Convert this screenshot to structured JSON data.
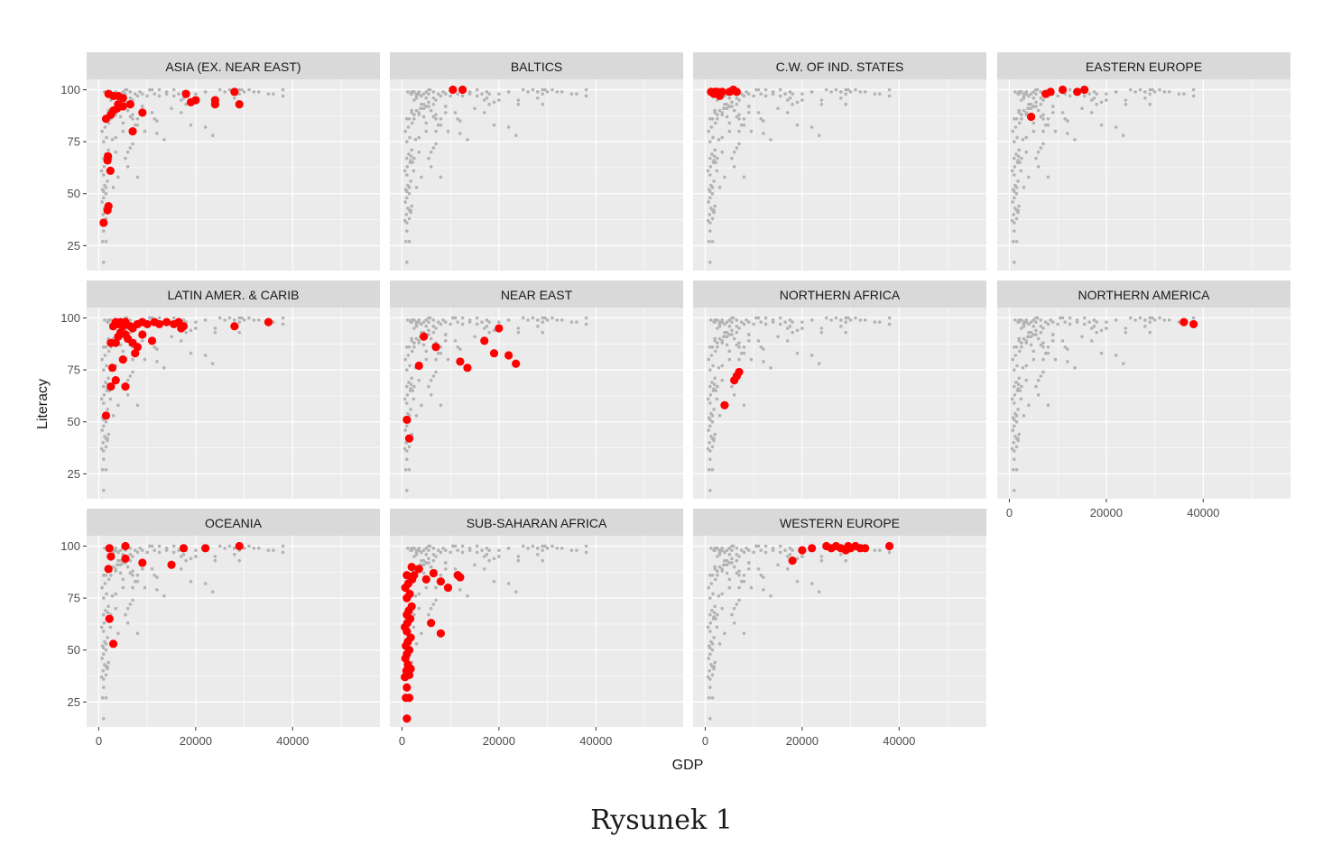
{
  "caption": "Rysunek 1",
  "chart_data": {
    "type": "scatter",
    "xlabel": "GDP",
    "ylabel": "Literacy",
    "xlim": [
      -2500,
      58000
    ],
    "ylim": [
      13,
      105
    ],
    "x_ticks": [
      0,
      20000,
      40000
    ],
    "y_ticks": [
      25,
      50,
      75,
      100
    ],
    "grid": true,
    "colors": {
      "background_points": "#b3b3b3",
      "highlight_points": "#ff0000",
      "panel_bg": "#ebebeb",
      "strip_bg": "#d9d9d9",
      "grid": "#ffffff"
    },
    "panels": [
      {
        "name": "ASIA (EX. NEAR EAST)",
        "points": [
          [
            1000,
            36
          ],
          [
            1800,
            42
          ],
          [
            2000,
            44
          ],
          [
            2400,
            61
          ],
          [
            1800,
            66
          ],
          [
            1900,
            68
          ],
          [
            7000,
            80
          ],
          [
            1500,
            86
          ],
          [
            2500,
            88
          ],
          [
            3000,
            90
          ],
          [
            3800,
            91
          ],
          [
            5000,
            92
          ],
          [
            6500,
            93
          ],
          [
            9000,
            89
          ],
          [
            4000,
            93
          ],
          [
            2000,
            98
          ],
          [
            3000,
            97
          ],
          [
            4000,
            97
          ],
          [
            5000,
            96
          ],
          [
            18000,
            98
          ],
          [
            19000,
            94
          ],
          [
            20000,
            95
          ],
          [
            24000,
            95
          ],
          [
            24000,
            93
          ],
          [
            28000,
            99
          ],
          [
            29000,
            93
          ]
        ]
      },
      {
        "name": "BALTICS",
        "points": [
          [
            10500,
            100
          ],
          [
            12500,
            100
          ]
        ]
      },
      {
        "name": "C.W. OF IND. STATES",
        "points": [
          [
            1200,
            99
          ],
          [
            1800,
            98
          ],
          [
            2500,
            99
          ],
          [
            3000,
            98
          ],
          [
            3500,
            99
          ],
          [
            2000,
            99
          ],
          [
            5000,
            99
          ],
          [
            5800,
            100
          ],
          [
            6500,
            99
          ],
          [
            3000,
            97
          ]
        ]
      },
      {
        "name": "EASTERN EUROPE",
        "points": [
          [
            4500,
            87
          ],
          [
            7500,
            98
          ],
          [
            8500,
            99
          ],
          [
            11000,
            100
          ],
          [
            14000,
            99
          ],
          [
            15500,
            100
          ]
        ]
      },
      {
        "name": "LATIN AMER. & CARIB",
        "points": [
          [
            1500,
            53
          ],
          [
            2500,
            67
          ],
          [
            2800,
            76
          ],
          [
            3500,
            70
          ],
          [
            5000,
            80
          ],
          [
            5500,
            67
          ],
          [
            7500,
            83
          ],
          [
            8000,
            86
          ],
          [
            2500,
            88
          ],
          [
            3500,
            88
          ],
          [
            4000,
            91
          ],
          [
            4500,
            93
          ],
          [
            5500,
            92
          ],
          [
            6000,
            90
          ],
          [
            7000,
            88
          ],
          [
            9000,
            92
          ],
          [
            11000,
            89
          ],
          [
            3000,
            96
          ],
          [
            3500,
            98
          ],
          [
            4000,
            97
          ],
          [
            5000,
            96
          ],
          [
            5500,
            98
          ],
          [
            6500,
            96
          ],
          [
            7000,
            95
          ],
          [
            8000,
            97
          ],
          [
            9000,
            98
          ],
          [
            10000,
            97
          ],
          [
            11500,
            98
          ],
          [
            12500,
            97
          ],
          [
            14000,
            98
          ],
          [
            15500,
            97
          ],
          [
            16500,
            98
          ],
          [
            17500,
            96
          ],
          [
            17000,
            95
          ],
          [
            4500,
            98
          ],
          [
            28000,
            96
          ],
          [
            35000,
            98
          ]
        ]
      },
      {
        "name": "NEAR EAST",
        "points": [
          [
            1000,
            51
          ],
          [
            1500,
            42
          ],
          [
            3500,
            77
          ],
          [
            4500,
            91
          ],
          [
            7000,
            86
          ],
          [
            12000,
            79
          ],
          [
            13500,
            76
          ],
          [
            17000,
            89
          ],
          [
            19000,
            83
          ],
          [
            20000,
            95
          ],
          [
            22000,
            82
          ],
          [
            23500,
            78
          ]
        ]
      },
      {
        "name": "NORTHERN AFRICA",
        "points": [
          [
            4000,
            58
          ],
          [
            6000,
            70
          ],
          [
            6500,
            72
          ],
          [
            7000,
            74
          ]
        ]
      },
      {
        "name": "NORTHERN AMERICA",
        "points": [
          [
            36000,
            98
          ],
          [
            38000,
            97
          ]
        ]
      },
      {
        "name": "OCEANIA",
        "points": [
          [
            2200,
            65
          ],
          [
            3000,
            53
          ],
          [
            2000,
            89
          ],
          [
            2500,
            95
          ],
          [
            5500,
            94
          ],
          [
            5500,
            100
          ],
          [
            9000,
            92
          ],
          [
            15000,
            91
          ],
          [
            2200,
            99
          ],
          [
            17500,
            99
          ],
          [
            22000,
            99
          ],
          [
            29000,
            100
          ]
        ]
      },
      {
        "name": "SUB-SAHARAN AFRICA",
        "points": [
          [
            1000,
            17
          ],
          [
            800,
            27
          ],
          [
            1000,
            32
          ],
          [
            1500,
            27
          ],
          [
            600,
            37
          ],
          [
            900,
            40
          ],
          [
            1500,
            38
          ],
          [
            1200,
            43
          ],
          [
            1800,
            41
          ],
          [
            700,
            46
          ],
          [
            1000,
            48
          ],
          [
            1500,
            50
          ],
          [
            800,
            52
          ],
          [
            1200,
            54
          ],
          [
            1800,
            56
          ],
          [
            1000,
            59
          ],
          [
            600,
            61
          ],
          [
            1100,
            63
          ],
          [
            1700,
            65
          ],
          [
            1000,
            67
          ],
          [
            1400,
            69
          ],
          [
            2000,
            71
          ],
          [
            1000,
            75
          ],
          [
            1600,
            77
          ],
          [
            700,
            80
          ],
          [
            1300,
            82
          ],
          [
            2100,
            84
          ],
          [
            1000,
            86
          ],
          [
            2500,
            86
          ],
          [
            2000,
            90
          ],
          [
            3500,
            89
          ],
          [
            5000,
            84
          ],
          [
            6500,
            87
          ],
          [
            8000,
            83
          ],
          [
            9500,
            80
          ],
          [
            11500,
            86
          ],
          [
            12000,
            85
          ],
          [
            6000,
            63
          ],
          [
            8000,
            58
          ]
        ]
      },
      {
        "name": "WESTERN EUROPE",
        "points": [
          [
            18000,
            93
          ],
          [
            20000,
            98
          ],
          [
            22000,
            99
          ],
          [
            25000,
            100
          ],
          [
            26000,
            99
          ],
          [
            27000,
            100
          ],
          [
            28000,
            99
          ],
          [
            29000,
            98
          ],
          [
            29500,
            100
          ],
          [
            30000,
            99
          ],
          [
            31000,
            100
          ],
          [
            32000,
            99
          ],
          [
            33000,
            99
          ],
          [
            38000,
            100
          ]
        ]
      }
    ]
  }
}
